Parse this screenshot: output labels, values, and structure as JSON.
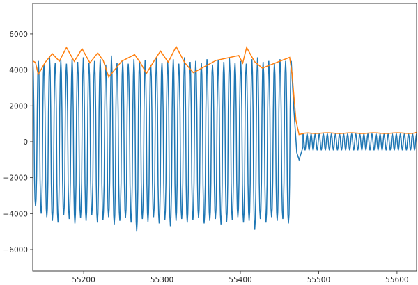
{
  "chart_data": {
    "type": "line",
    "title": "",
    "xlabel": "",
    "ylabel": "",
    "xlim": [
      55135,
      55625
    ],
    "ylim": [
      -7200,
      7700
    ],
    "x_ticks": [
      55200,
      55300,
      55400,
      55500,
      55600
    ],
    "y_ticks": [
      -6000,
      -4000,
      -2000,
      0,
      2000,
      4000,
      6000
    ],
    "x_tick_labels": [
      "55200",
      "55300",
      "55400",
      "55500",
      "55600"
    ],
    "y_tick_labels": [
      "−6000",
      "−4000",
      "−2000",
      "0",
      "2000",
      "4000",
      "6000"
    ],
    "grid": false,
    "legend": "none",
    "series": [
      {
        "role": "signal",
        "color": "#1f77b4",
        "x_start": 55135,
        "x_end": 55625,
        "transition_x": [
          55465,
          55480
        ],
        "cycles_active": 46,
        "cycles_quiet": 28,
        "peaks_active": [
          4600,
          4500,
          4300,
          4700,
          4400,
          4550,
          4350,
          4600,
          4450,
          4700,
          4400,
          4500,
          4600,
          4300,
          4800,
          4400,
          4500,
          4350,
          4600,
          4450,
          4550,
          4300,
          4650,
          4400,
          4500,
          4600,
          4350,
          4700,
          4450,
          4500,
          4400,
          4600,
          4300,
          4550,
          4450,
          4650,
          4400,
          4500,
          4350,
          4600,
          4700,
          4450,
          4500,
          4400,
          4600,
          4500
        ],
        "troughs_active": [
          -3600,
          -4000,
          -4200,
          -4400,
          -4500,
          -4100,
          -4300,
          -4550,
          -4250,
          -4400,
          -4100,
          -4500,
          -4350,
          -4200,
          -4600,
          -4400,
          -4250,
          -4500,
          -5000,
          -4300,
          -4450,
          -4200,
          -4550,
          -4350,
          -4700,
          -4400,
          -4300,
          -4500,
          -4350,
          -4250,
          -4550,
          -4400,
          -4300,
          -4600,
          -4450,
          -4350,
          -4200,
          -4500,
          -4400,
          -4900,
          -4300,
          -4500,
          -4200,
          -4400,
          -4300,
          -4550
        ],
        "peaks_quiet": 450,
        "troughs_quiet": -480
      },
      {
        "role": "envelope",
        "color": "#ff7f0e",
        "level_active": 4450,
        "bumps": [
          [
            55160,
            4900
          ],
          [
            55178,
            5250
          ],
          [
            55198,
            5180
          ],
          [
            55218,
            4950
          ],
          [
            55265,
            4850
          ],
          [
            55298,
            5050
          ],
          [
            55318,
            5300
          ],
          [
            55398,
            4800
          ],
          [
            55408,
            5250
          ]
        ],
        "dips": [
          [
            55142,
            3750
          ],
          [
            55232,
            3600
          ],
          [
            55280,
            3800
          ],
          [
            55340,
            3850
          ],
          [
            55428,
            4100
          ]
        ],
        "level_quiet": 480
      }
    ]
  }
}
